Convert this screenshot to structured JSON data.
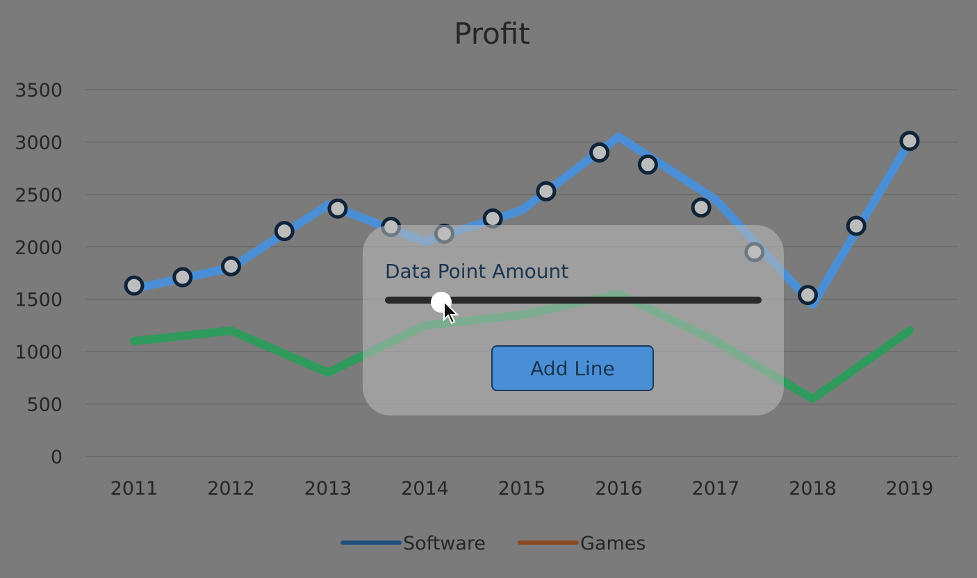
{
  "chart_data": {
    "type": "line",
    "title": "Profit",
    "categories": [
      "2011",
      "2012",
      "2013",
      "2014",
      "2015",
      "2016",
      "2017",
      "2018",
      "2019"
    ],
    "ylim": [
      0,
      3500
    ],
    "yticks": [
      0,
      500,
      1000,
      1500,
      2000,
      2500,
      3000,
      3500
    ],
    "grid": true,
    "legend_position": "bottom",
    "series": [
      {
        "name": "Software",
        "color": "#4a8fd6",
        "values": [
          1600,
          1800,
          2400,
          2050,
          2350,
          3050,
          2450,
          1450,
          3000
        ]
      },
      {
        "name": "Games",
        "color": "#2e9a5c",
        "values": [
          1100,
          1200,
          800,
          1250,
          1350,
          1550,
          1100,
          550,
          1200
        ]
      }
    ],
    "markers": [
      {
        "x": 2011.0,
        "y": 1630
      },
      {
        "x": 2011.5,
        "y": 1710
      },
      {
        "x": 2012.0,
        "y": 1815
      },
      {
        "x": 2012.55,
        "y": 2150
      },
      {
        "x": 2013.1,
        "y": 2365
      },
      {
        "x": 2013.65,
        "y": 2190
      },
      {
        "x": 2014.2,
        "y": 2125
      },
      {
        "x": 2014.7,
        "y": 2270
      },
      {
        "x": 2015.25,
        "y": 2530
      },
      {
        "x": 2015.8,
        "y": 2900
      },
      {
        "x": 2016.3,
        "y": 2785
      },
      {
        "x": 2016.85,
        "y": 2375
      },
      {
        "x": 2017.4,
        "y": 1950
      },
      {
        "x": 2017.95,
        "y": 1540
      },
      {
        "x": 2018.45,
        "y": 2200
      },
      {
        "x": 2019.0,
        "y": 3010
      }
    ],
    "legend": [
      {
        "label": "Software",
        "color": "#1f4f7f"
      },
      {
        "label": "Games",
        "color": "#8a4a20"
      }
    ]
  },
  "controls": {
    "slider_label": "Data Point Amount",
    "slider_value": 0.15,
    "add_button_label": "Add Line"
  }
}
